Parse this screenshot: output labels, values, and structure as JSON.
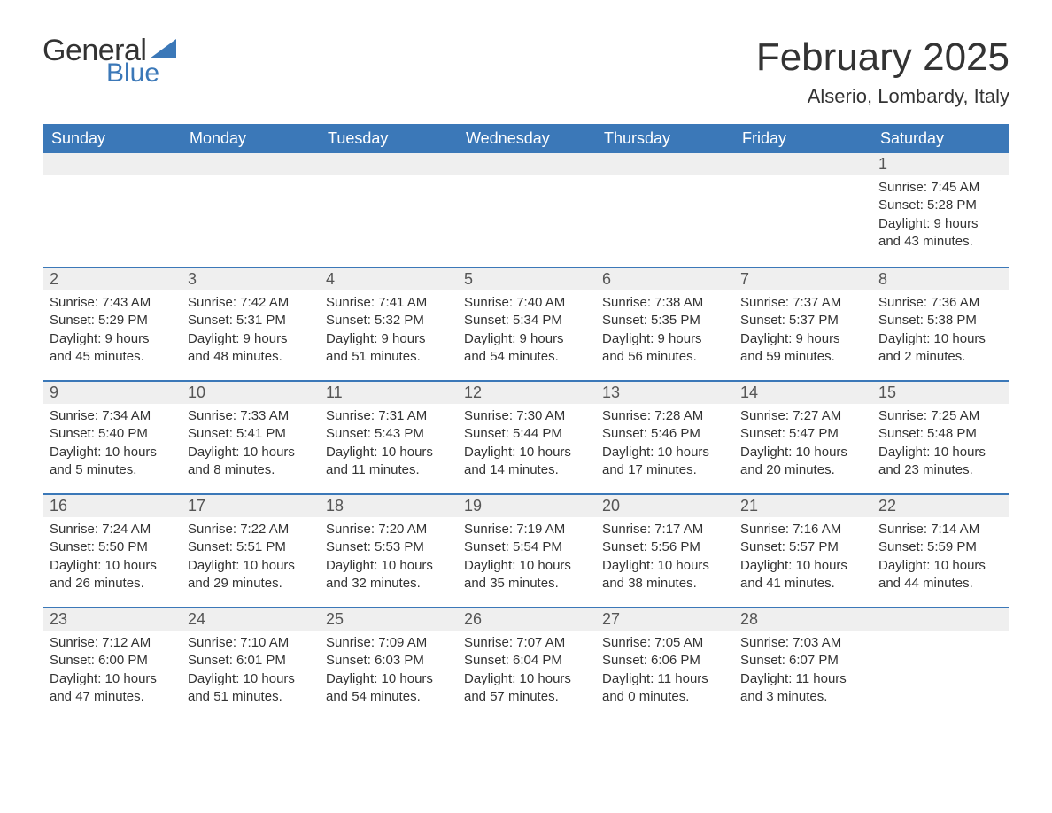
{
  "brand": {
    "word1": "General",
    "word2": "Blue",
    "accent_color": "#3b78b8",
    "text_color": "#333333"
  },
  "title": "February 2025",
  "location": "Alserio, Lombardy, Italy",
  "header_bg": "#3b78b8",
  "header_fg": "#ffffff",
  "row_divider_color": "#3b78b8",
  "daynum_bg": "#efefef",
  "weekdays": [
    "Sunday",
    "Monday",
    "Tuesday",
    "Wednesday",
    "Thursday",
    "Friday",
    "Saturday"
  ],
  "weeks": [
    [
      null,
      null,
      null,
      null,
      null,
      null,
      {
        "n": "1",
        "sunrise": "Sunrise: 7:45 AM",
        "sunset": "Sunset: 5:28 PM",
        "daylight": "Daylight: 9 hours and 43 minutes."
      }
    ],
    [
      {
        "n": "2",
        "sunrise": "Sunrise: 7:43 AM",
        "sunset": "Sunset: 5:29 PM",
        "daylight": "Daylight: 9 hours and 45 minutes."
      },
      {
        "n": "3",
        "sunrise": "Sunrise: 7:42 AM",
        "sunset": "Sunset: 5:31 PM",
        "daylight": "Daylight: 9 hours and 48 minutes."
      },
      {
        "n": "4",
        "sunrise": "Sunrise: 7:41 AM",
        "sunset": "Sunset: 5:32 PM",
        "daylight": "Daylight: 9 hours and 51 minutes."
      },
      {
        "n": "5",
        "sunrise": "Sunrise: 7:40 AM",
        "sunset": "Sunset: 5:34 PM",
        "daylight": "Daylight: 9 hours and 54 minutes."
      },
      {
        "n": "6",
        "sunrise": "Sunrise: 7:38 AM",
        "sunset": "Sunset: 5:35 PM",
        "daylight": "Daylight: 9 hours and 56 minutes."
      },
      {
        "n": "7",
        "sunrise": "Sunrise: 7:37 AM",
        "sunset": "Sunset: 5:37 PM",
        "daylight": "Daylight: 9 hours and 59 minutes."
      },
      {
        "n": "8",
        "sunrise": "Sunrise: 7:36 AM",
        "sunset": "Sunset: 5:38 PM",
        "daylight": "Daylight: 10 hours and 2 minutes."
      }
    ],
    [
      {
        "n": "9",
        "sunrise": "Sunrise: 7:34 AM",
        "sunset": "Sunset: 5:40 PM",
        "daylight": "Daylight: 10 hours and 5 minutes."
      },
      {
        "n": "10",
        "sunrise": "Sunrise: 7:33 AM",
        "sunset": "Sunset: 5:41 PM",
        "daylight": "Daylight: 10 hours and 8 minutes."
      },
      {
        "n": "11",
        "sunrise": "Sunrise: 7:31 AM",
        "sunset": "Sunset: 5:43 PM",
        "daylight": "Daylight: 10 hours and 11 minutes."
      },
      {
        "n": "12",
        "sunrise": "Sunrise: 7:30 AM",
        "sunset": "Sunset: 5:44 PM",
        "daylight": "Daylight: 10 hours and 14 minutes."
      },
      {
        "n": "13",
        "sunrise": "Sunrise: 7:28 AM",
        "sunset": "Sunset: 5:46 PM",
        "daylight": "Daylight: 10 hours and 17 minutes."
      },
      {
        "n": "14",
        "sunrise": "Sunrise: 7:27 AM",
        "sunset": "Sunset: 5:47 PM",
        "daylight": "Daylight: 10 hours and 20 minutes."
      },
      {
        "n": "15",
        "sunrise": "Sunrise: 7:25 AM",
        "sunset": "Sunset: 5:48 PM",
        "daylight": "Daylight: 10 hours and 23 minutes."
      }
    ],
    [
      {
        "n": "16",
        "sunrise": "Sunrise: 7:24 AM",
        "sunset": "Sunset: 5:50 PM",
        "daylight": "Daylight: 10 hours and 26 minutes."
      },
      {
        "n": "17",
        "sunrise": "Sunrise: 7:22 AM",
        "sunset": "Sunset: 5:51 PM",
        "daylight": "Daylight: 10 hours and 29 minutes."
      },
      {
        "n": "18",
        "sunrise": "Sunrise: 7:20 AM",
        "sunset": "Sunset: 5:53 PM",
        "daylight": "Daylight: 10 hours and 32 minutes."
      },
      {
        "n": "19",
        "sunrise": "Sunrise: 7:19 AM",
        "sunset": "Sunset: 5:54 PM",
        "daylight": "Daylight: 10 hours and 35 minutes."
      },
      {
        "n": "20",
        "sunrise": "Sunrise: 7:17 AM",
        "sunset": "Sunset: 5:56 PM",
        "daylight": "Daylight: 10 hours and 38 minutes."
      },
      {
        "n": "21",
        "sunrise": "Sunrise: 7:16 AM",
        "sunset": "Sunset: 5:57 PM",
        "daylight": "Daylight: 10 hours and 41 minutes."
      },
      {
        "n": "22",
        "sunrise": "Sunrise: 7:14 AM",
        "sunset": "Sunset: 5:59 PM",
        "daylight": "Daylight: 10 hours and 44 minutes."
      }
    ],
    [
      {
        "n": "23",
        "sunrise": "Sunrise: 7:12 AM",
        "sunset": "Sunset: 6:00 PM",
        "daylight": "Daylight: 10 hours and 47 minutes."
      },
      {
        "n": "24",
        "sunrise": "Sunrise: 7:10 AM",
        "sunset": "Sunset: 6:01 PM",
        "daylight": "Daylight: 10 hours and 51 minutes."
      },
      {
        "n": "25",
        "sunrise": "Sunrise: 7:09 AM",
        "sunset": "Sunset: 6:03 PM",
        "daylight": "Daylight: 10 hours and 54 minutes."
      },
      {
        "n": "26",
        "sunrise": "Sunrise: 7:07 AM",
        "sunset": "Sunset: 6:04 PM",
        "daylight": "Daylight: 10 hours and 57 minutes."
      },
      {
        "n": "27",
        "sunrise": "Sunrise: 7:05 AM",
        "sunset": "Sunset: 6:06 PM",
        "daylight": "Daylight: 11 hours and 0 minutes."
      },
      {
        "n": "28",
        "sunrise": "Sunrise: 7:03 AM",
        "sunset": "Sunset: 6:07 PM",
        "daylight": "Daylight: 11 hours and 3 minutes."
      },
      null
    ]
  ]
}
